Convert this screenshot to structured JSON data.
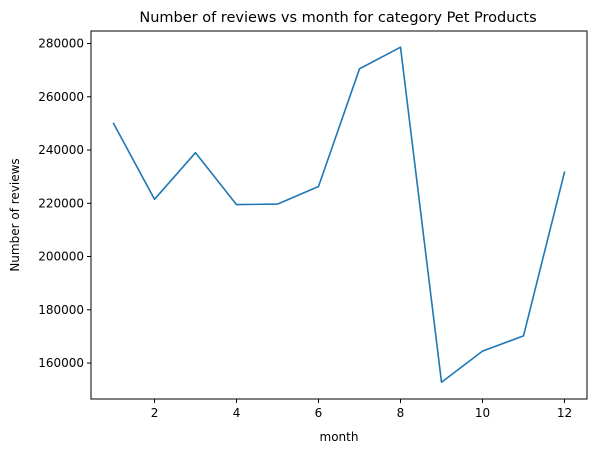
{
  "chart_data": {
    "type": "line",
    "title": "Number of reviews vs month for category Pet Products",
    "xlabel": "month",
    "ylabel": "Number of reviews",
    "x": [
      1,
      2,
      3,
      4,
      5,
      6,
      7,
      8,
      9,
      10,
      11,
      12
    ],
    "series": [
      {
        "values": [
          250000,
          221500,
          239000,
          219500,
          219700,
          226300,
          270500,
          278600,
          152800,
          164500,
          170200,
          231700
        ],
        "color": "#1f77b4"
      }
    ],
    "xlim": [
      0.45,
      12.55
    ],
    "ylim": [
      146500,
      284700
    ],
    "x_ticks": [
      2,
      4,
      6,
      8,
      10,
      12
    ],
    "y_ticks": [
      160000,
      180000,
      200000,
      220000,
      240000,
      260000,
      280000
    ],
    "x_tick_labels": [
      "2",
      "4",
      "6",
      "8",
      "10",
      "12"
    ],
    "y_tick_labels": [
      "160000",
      "180000",
      "200000",
      "220000",
      "240000",
      "260000",
      "280000"
    ],
    "grid": false,
    "legend": "none"
  }
}
